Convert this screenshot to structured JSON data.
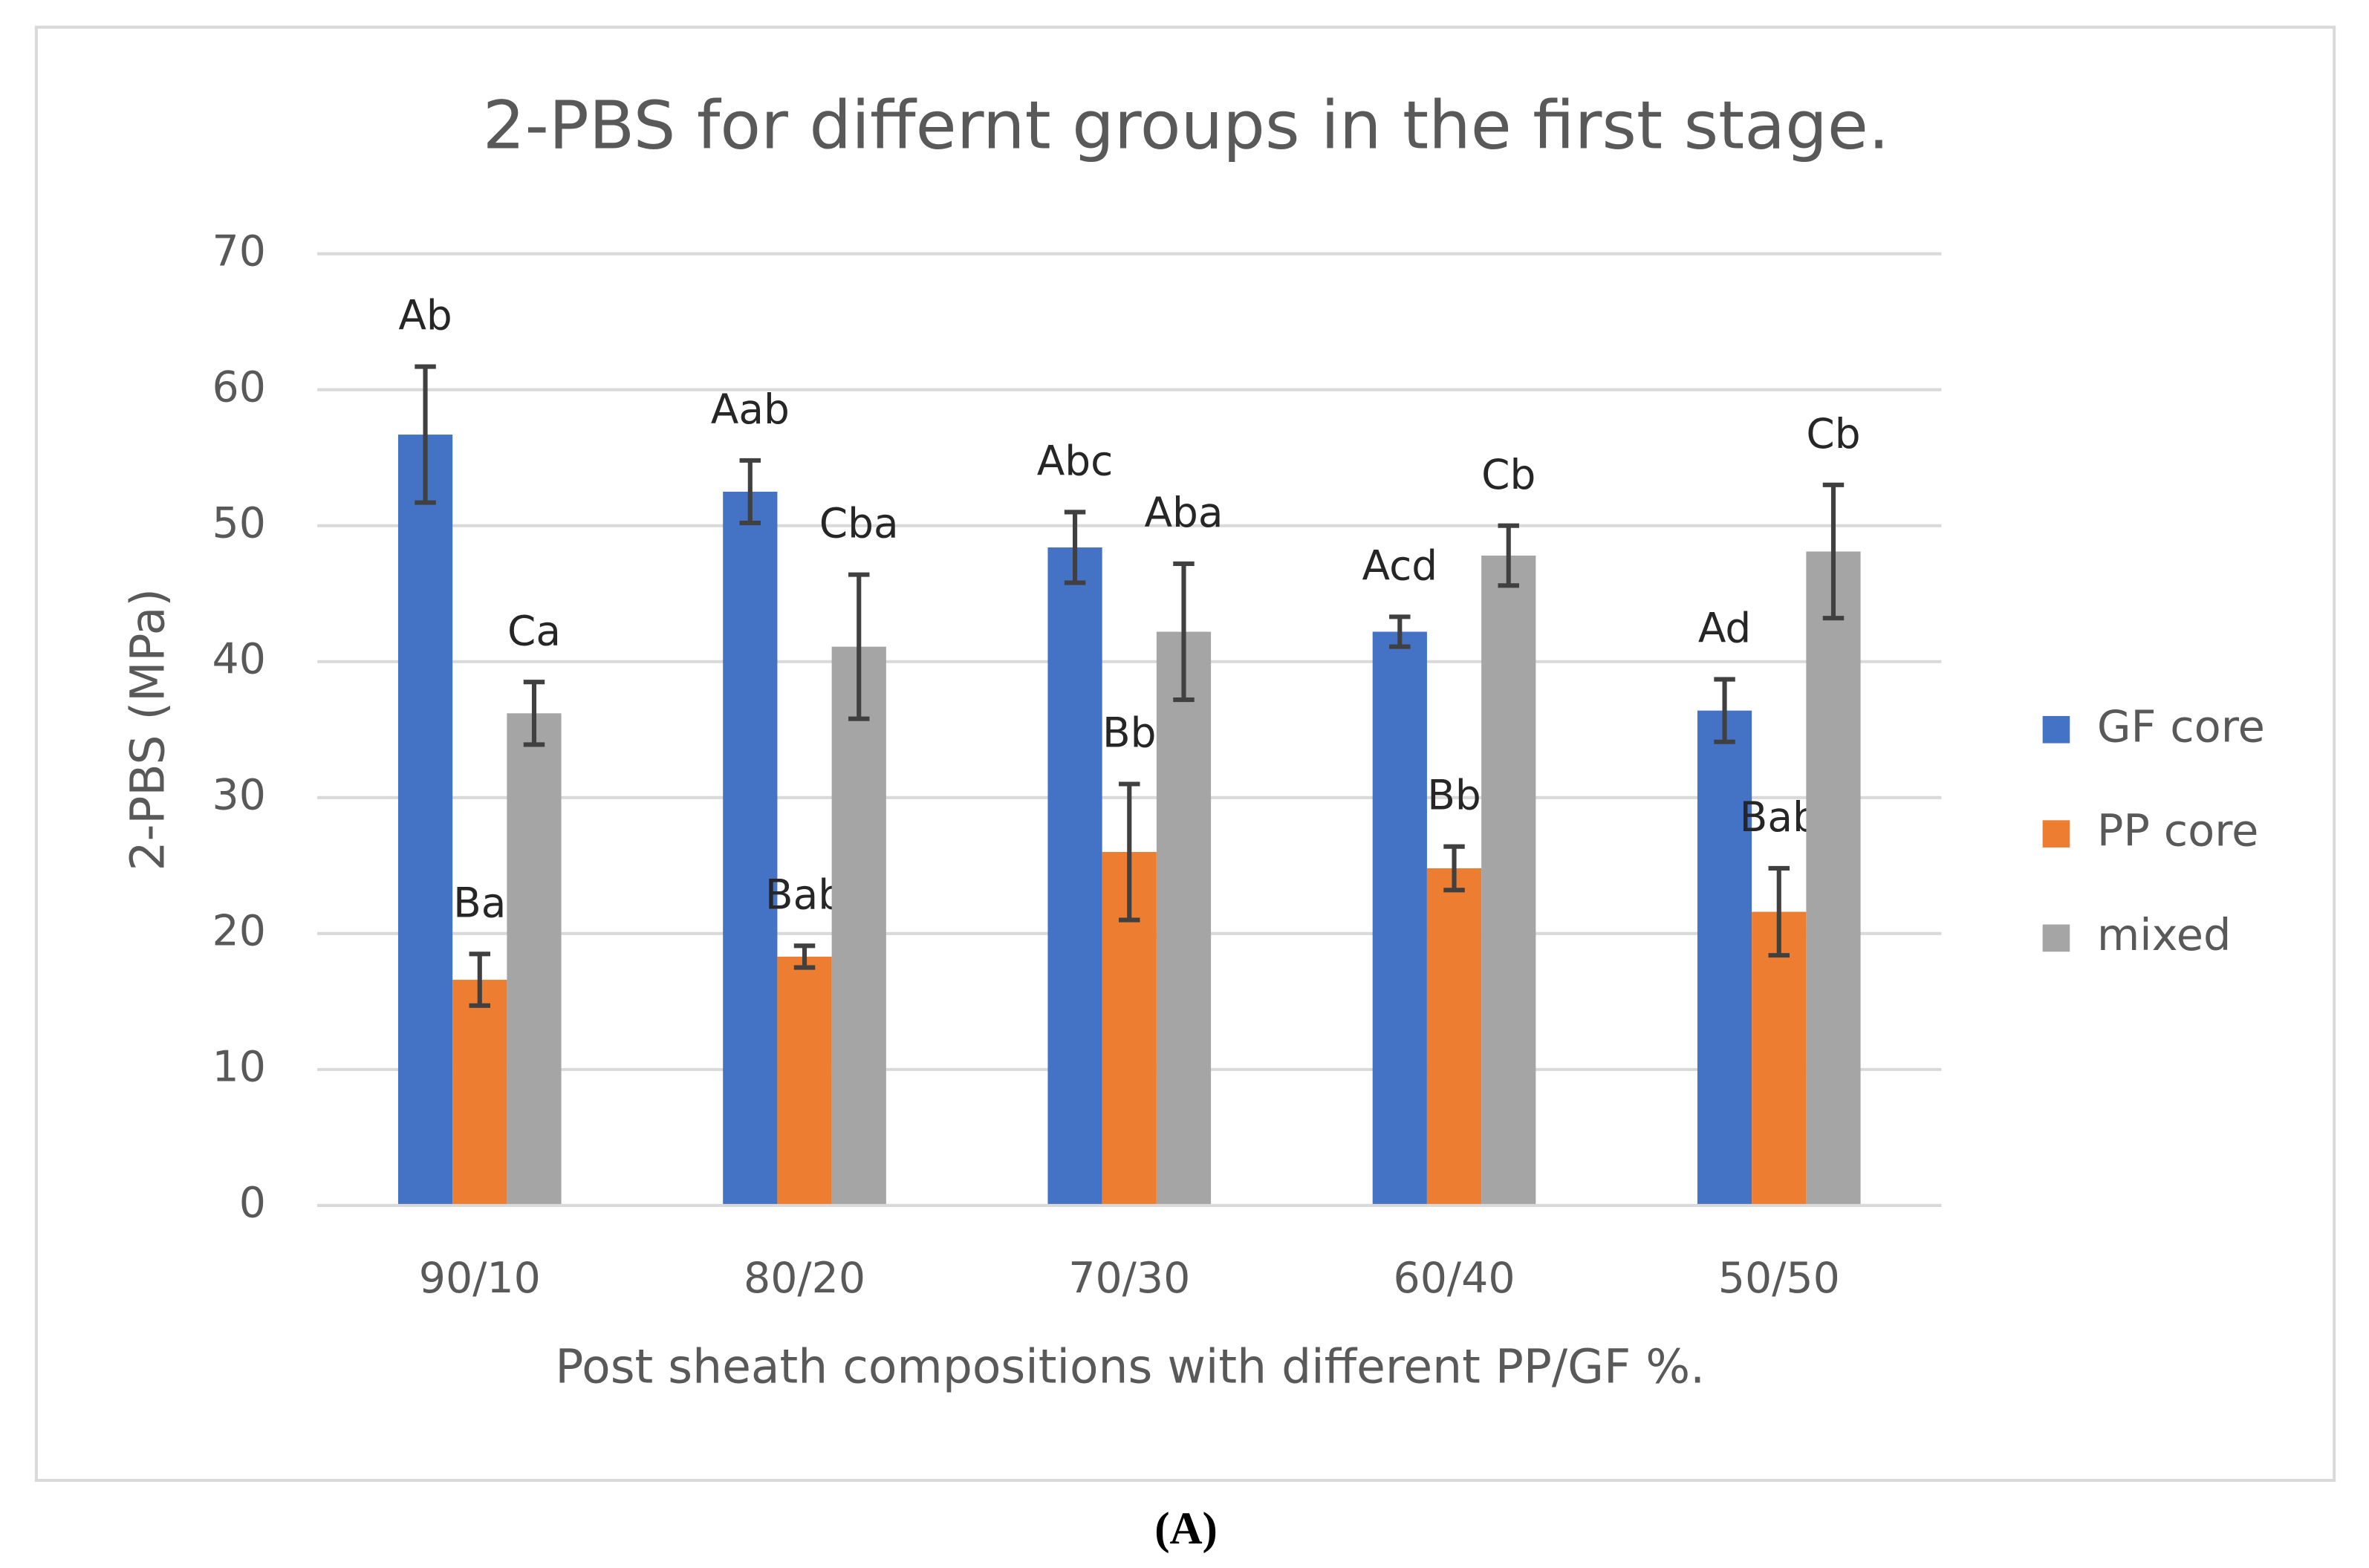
{
  "chart_data": {
    "type": "bar",
    "title": "2-PBS for differnt groups in the first stage.",
    "x_label": "Post sheath compositions with different PP/GF %.",
    "y_label": "2-PBS (MPa)",
    "caption": "(A)",
    "categories": [
      "90/10",
      "80/20",
      "70/30",
      "60/40",
      "50/50"
    ],
    "series": [
      {
        "name": "GF core",
        "color": "#4472c4",
        "values": [
          56.7,
          52.5,
          48.4,
          42.2,
          36.4
        ],
        "errors": [
          5.0,
          2.3,
          2.6,
          1.1,
          2.3
        ],
        "letters": [
          "Ab",
          "Aab",
          "Abc",
          "Acd",
          "Ad"
        ]
      },
      {
        "name": "PP core",
        "color": "#ed7d31",
        "values": [
          16.6,
          18.3,
          26.0,
          24.8,
          21.6
        ],
        "errors": [
          1.9,
          0.8,
          5.0,
          1.6,
          3.2
        ],
        "letters": [
          "Ba",
          "Bab",
          "Bb",
          "Bb",
          "Bab"
        ]
      },
      {
        "name": "mixed",
        "color": "#a5a5a5",
        "values": [
          36.2,
          41.1,
          42.2,
          47.8,
          48.1
        ],
        "errors": [
          2.3,
          5.3,
          5.0,
          2.2,
          4.9
        ],
        "letters": [
          "Ca",
          "Cba",
          "Aba",
          "Cb",
          "Cb"
        ]
      }
    ],
    "ylim": [
      0,
      70
    ],
    "yticks": [
      0,
      10,
      20,
      30,
      40,
      50,
      60,
      70
    ],
    "grid": true,
    "legend": "right"
  }
}
